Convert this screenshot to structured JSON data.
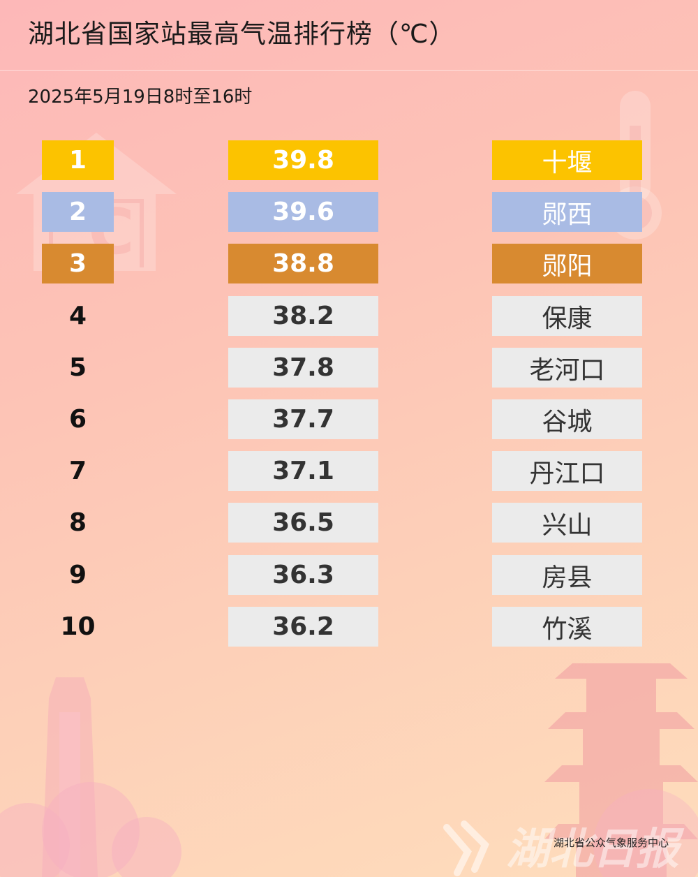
{
  "title": "湖北省国家站最高气温排行榜（℃）",
  "subtitle": "2025年5月19日8时至16时",
  "colors": {
    "gold": "#fcc300",
    "silver": "#a9bbe4",
    "bronze": "#d88a30",
    "default_cell": "#ebebeb"
  },
  "rankings": [
    {
      "rank": "1",
      "temp": "39.8",
      "city": "十堰",
      "medal": "gold"
    },
    {
      "rank": "2",
      "temp": "39.6",
      "city": "郧西",
      "medal": "silver"
    },
    {
      "rank": "3",
      "temp": "38.8",
      "city": "郧阳",
      "medal": "bronze"
    },
    {
      "rank": "4",
      "temp": "38.2",
      "city": "保康",
      "medal": "none"
    },
    {
      "rank": "5",
      "temp": "37.8",
      "city": "老河口",
      "medal": "none"
    },
    {
      "rank": "6",
      "temp": "37.7",
      "city": "谷城",
      "medal": "none"
    },
    {
      "rank": "7",
      "temp": "37.1",
      "city": "丹江口",
      "medal": "none"
    },
    {
      "rank": "8",
      "temp": "36.5",
      "city": "兴山",
      "medal": "none"
    },
    {
      "rank": "9",
      "temp": "36.3",
      "city": "房县",
      "medal": "none"
    },
    {
      "rank": "10",
      "temp": "36.2",
      "city": "竹溪",
      "medal": "none"
    }
  ],
  "footer": "湖北省公众气象服务中心",
  "watermark": "湖北日报"
}
